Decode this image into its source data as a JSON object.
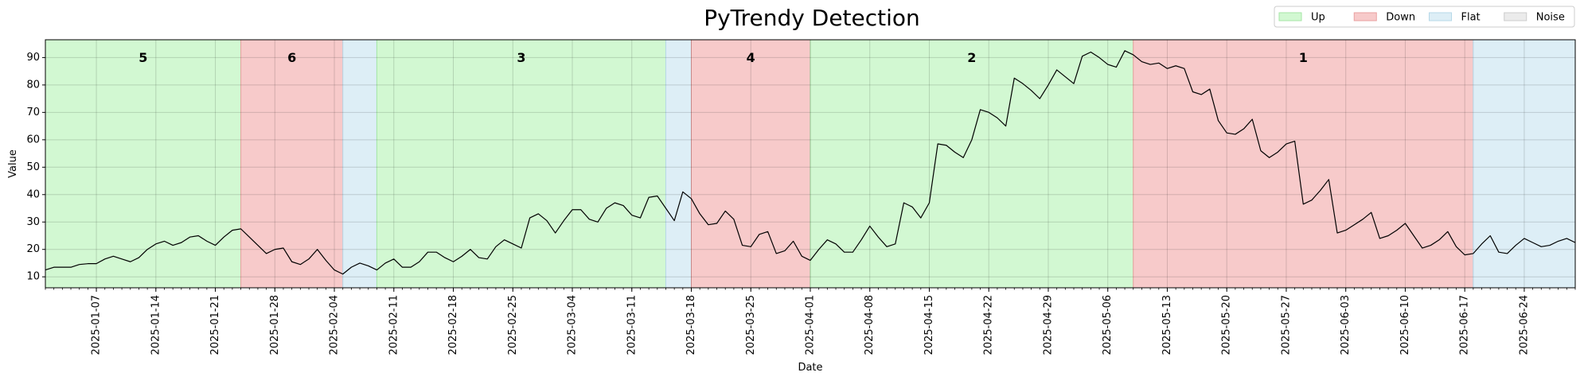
{
  "chart_data": {
    "type": "line",
    "title": "PyTrendy Detection",
    "x_label": "Date",
    "y_label": "Value",
    "color": "#000000",
    "grid": true,
    "legend_position": "upper right",
    "xlim": [
      "2025-01-01",
      "2025-06-30"
    ],
    "ylim": [
      6,
      96.5
    ],
    "yticks": [
      10,
      20,
      30,
      40,
      50,
      60,
      70,
      80,
      90
    ],
    "xticks": [
      "2025-01-07",
      "2025-01-14",
      "2025-01-21",
      "2025-01-28",
      "2025-02-04",
      "2025-02-11",
      "2025-02-18",
      "2025-02-25",
      "2025-03-04",
      "2025-03-11",
      "2025-03-18",
      "2025-03-25",
      "2025-04-01",
      "2025-04-08",
      "2025-04-15",
      "2025-04-22",
      "2025-04-29",
      "2025-05-06",
      "2025-05-13",
      "2025-05-20",
      "2025-05-27",
      "2025-06-03",
      "2025-06-10",
      "2025-06-17",
      "2025-06-24"
    ],
    "legend": [
      {
        "name": "Up",
        "color": "#d2f8d2",
        "edge": "#a6e6a6"
      },
      {
        "name": "Down",
        "color": "#f7caca",
        "edge": "#eaa0a0"
      },
      {
        "name": "Flat",
        "color": "#ddeef6",
        "edge": "#b6d8e8"
      },
      {
        "name": "Noise",
        "color": "#ebebeb",
        "edge": "#cccccc"
      }
    ],
    "label_colors": {
      "Up": "#158a15",
      "Down": "#f4805a"
    },
    "regions": [
      {
        "trend": "Up",
        "start": "2025-01-01",
        "end": "2025-01-24",
        "label": "5"
      },
      {
        "trend": "Down",
        "start": "2025-01-24",
        "end": "2025-02-05",
        "label": "6"
      },
      {
        "trend": "Flat",
        "start": "2025-02-05",
        "end": "2025-02-09"
      },
      {
        "trend": "Up",
        "start": "2025-02-09",
        "end": "2025-03-15",
        "label": "3"
      },
      {
        "trend": "Flat",
        "start": "2025-03-15",
        "end": "2025-03-18"
      },
      {
        "trend": "Down",
        "start": "2025-03-18",
        "end": "2025-04-01",
        "label": "4"
      },
      {
        "trend": "Up",
        "start": "2025-04-01",
        "end": "2025-05-09",
        "label": "2"
      },
      {
        "trend": "Down",
        "start": "2025-05-09",
        "end": "2025-06-18",
        "label": "1"
      },
      {
        "trend": "Flat",
        "start": "2025-06-18",
        "end": "2025-06-30"
      }
    ],
    "x": [
      "2025-01-01",
      "2025-01-02",
      "2025-01-03",
      "2025-01-04",
      "2025-01-05",
      "2025-01-06",
      "2025-01-07",
      "2025-01-08",
      "2025-01-09",
      "2025-01-10",
      "2025-01-11",
      "2025-01-12",
      "2025-01-13",
      "2025-01-14",
      "2025-01-15",
      "2025-01-16",
      "2025-01-17",
      "2025-01-18",
      "2025-01-19",
      "2025-01-20",
      "2025-01-21",
      "2025-01-22",
      "2025-01-23",
      "2025-01-24",
      "2025-01-25",
      "2025-01-26",
      "2025-01-27",
      "2025-01-28",
      "2025-01-29",
      "2025-01-30",
      "2025-01-31",
      "2025-02-01",
      "2025-02-02",
      "2025-02-03",
      "2025-02-04",
      "2025-02-05",
      "2025-02-06",
      "2025-02-07",
      "2025-02-08",
      "2025-02-09",
      "2025-02-10",
      "2025-02-11",
      "2025-02-12",
      "2025-02-13",
      "2025-02-14",
      "2025-02-15",
      "2025-02-16",
      "2025-02-17",
      "2025-02-18",
      "2025-02-19",
      "2025-02-20",
      "2025-02-21",
      "2025-02-22",
      "2025-02-23",
      "2025-02-24",
      "2025-02-25",
      "2025-02-26",
      "2025-02-27",
      "2025-02-28",
      "2025-03-01",
      "2025-03-02",
      "2025-03-03",
      "2025-03-04",
      "2025-03-05",
      "2025-03-06",
      "2025-03-07",
      "2025-03-08",
      "2025-03-09",
      "2025-03-10",
      "2025-03-11",
      "2025-03-12",
      "2025-03-13",
      "2025-03-14",
      "2025-03-15",
      "2025-03-16",
      "2025-03-17",
      "2025-03-18",
      "2025-03-19",
      "2025-03-20",
      "2025-03-21",
      "2025-03-22",
      "2025-03-23",
      "2025-03-24",
      "2025-03-25",
      "2025-03-26",
      "2025-03-27",
      "2025-03-28",
      "2025-03-29",
      "2025-03-30",
      "2025-03-31",
      "2025-04-01",
      "2025-04-02",
      "2025-04-03",
      "2025-04-04",
      "2025-04-05",
      "2025-04-06",
      "2025-04-07",
      "2025-04-08",
      "2025-04-09",
      "2025-04-10",
      "2025-04-11",
      "2025-04-12",
      "2025-04-13",
      "2025-04-14",
      "2025-04-15",
      "2025-04-16",
      "2025-04-17",
      "2025-04-18",
      "2025-04-19",
      "2025-04-20",
      "2025-04-21",
      "2025-04-22",
      "2025-04-23",
      "2025-04-24",
      "2025-04-25",
      "2025-04-26",
      "2025-04-27",
      "2025-04-28",
      "2025-04-29",
      "2025-04-30",
      "2025-05-01",
      "2025-05-02",
      "2025-05-03",
      "2025-05-04",
      "2025-05-05",
      "2025-05-06",
      "2025-05-07",
      "2025-05-08",
      "2025-05-09",
      "2025-05-10",
      "2025-05-11",
      "2025-05-12",
      "2025-05-13",
      "2025-05-14",
      "2025-05-15",
      "2025-05-16",
      "2025-05-17",
      "2025-05-18",
      "2025-05-19",
      "2025-05-20",
      "2025-05-21",
      "2025-05-22",
      "2025-05-23",
      "2025-05-24",
      "2025-05-25",
      "2025-05-26",
      "2025-05-27",
      "2025-05-28",
      "2025-05-29",
      "2025-05-30",
      "2025-05-31",
      "2025-06-01",
      "2025-06-02",
      "2025-06-03",
      "2025-06-04",
      "2025-06-05",
      "2025-06-06",
      "2025-06-07",
      "2025-06-08",
      "2025-06-09",
      "2025-06-10",
      "2025-06-11",
      "2025-06-12",
      "2025-06-13",
      "2025-06-14",
      "2025-06-15",
      "2025-06-16",
      "2025-06-17",
      "2025-06-18",
      "2025-06-19",
      "2025-06-20",
      "2025-06-21",
      "2025-06-22",
      "2025-06-23",
      "2025-06-24",
      "2025-06-25",
      "2025-06-26",
      "2025-06-27",
      "2025-06-28",
      "2025-06-29",
      "2025-06-30"
    ],
    "values": [
      12.5,
      13.5,
      13.5,
      13.5,
      14.5,
      14.8,
      14.8,
      16.5,
      17.5,
      16.5,
      15.5,
      17,
      20,
      22,
      23,
      21.5,
      22.5,
      24.5,
      25,
      23,
      21.5,
      24.5,
      27,
      27.5,
      24.5,
      21.5,
      18.5,
      20,
      20.5,
      15.5,
      14.5,
      16.5,
      20,
      16,
      12.5,
      11,
      13.5,
      15,
      14,
      12.5,
      15,
      16.5,
      13.5,
      13.5,
      15.5,
      19,
      19,
      17,
      15.5,
      17.5,
      20,
      17,
      16.5,
      21,
      23.5,
      22,
      20.5,
      31.5,
      33,
      30.5,
      26,
      30.5,
      34.5,
      34.5,
      31,
      30,
      35,
      37,
      36,
      32.5,
      31.5,
      39,
      39.5,
      35,
      30.5,
      41,
      38.5,
      33,
      29,
      29.5,
      34,
      31,
      21.5,
      21,
      25.5,
      26.5,
      18.5,
      19.5,
      23,
      17.5,
      16,
      20,
      23.5,
      22,
      19,
      19,
      23.5,
      28.5,
      24.5,
      21,
      22,
      37,
      35.5,
      31.5,
      37,
      58.5,
      58,
      55.5,
      53.5,
      60,
      71,
      70,
      68,
      65,
      82.5,
      80.5,
      78,
      75,
      80,
      85.5,
      83,
      80.5,
      90.5,
      92,
      90,
      87.5,
      86.5,
      92.5,
      91,
      88.5,
      87.5,
      88,
      86,
      87,
      86,
      77.5,
      76.5,
      78.5,
      67,
      62.5,
      62,
      64,
      67.5,
      56,
      53.5,
      55.5,
      58.5,
      59.5,
      36.5,
      38,
      41.5,
      45.5,
      26,
      27,
      29,
      31,
      33.5,
      24,
      25,
      27,
      29.5,
      25,
      20.5,
      21.5,
      23.5,
      26.5,
      21,
      18,
      18.5,
      22,
      25,
      19,
      18.5,
      21.5,
      24,
      22.5,
      21,
      21.5,
      23,
      24,
      22.5
    ]
  }
}
